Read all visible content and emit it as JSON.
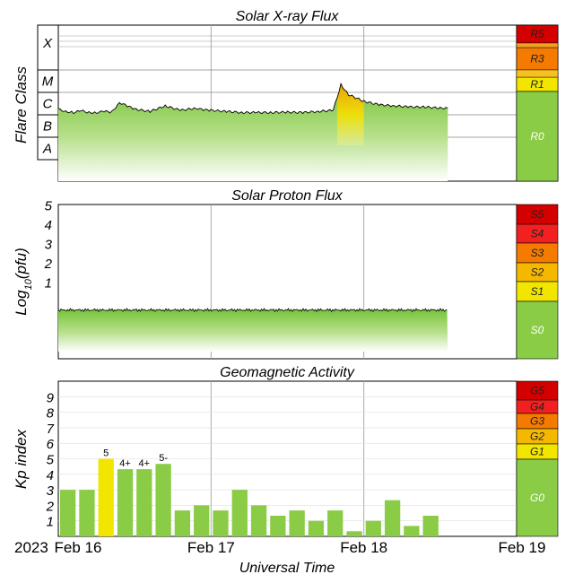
{
  "chart_data": [
    {
      "type": "area",
      "title": "Solar X-ray Flux",
      "ylabel": "Flare Class",
      "classes": [
        "X",
        "M",
        "C",
        "B",
        "A"
      ],
      "scale": [
        {
          "label": "R5",
          "color": "#d40000"
        },
        {
          "label": "R3",
          "color": "#f47a00"
        },
        {
          "label": "R1",
          "color": "#f2e600"
        },
        {
          "label": "R0",
          "color": "#8acc46"
        }
      ],
      "x_days": [
        0,
        0.05,
        0.1,
        0.15,
        0.2,
        0.25,
        0.3,
        0.35,
        0.4,
        0.45,
        0.5,
        0.6,
        0.7,
        0.8,
        0.9,
        0.95,
        1,
        1.1,
        1.2,
        1.3,
        1.4,
        1.5,
        1.6,
        1.7,
        1.8,
        1.85,
        1.9,
        2,
        2.1,
        2.2,
        2.3,
        2.4,
        2.5,
        2.55
      ],
      "class_level": [
        2.25,
        2.15,
        2.1,
        2.18,
        2.1,
        2.1,
        2.15,
        2.12,
        2.55,
        2.4,
        2.25,
        2.15,
        2.4,
        2.2,
        2.3,
        2.22,
        2.2,
        2.15,
        2.1,
        2.1,
        2.1,
        2.12,
        2.1,
        2.15,
        2.2,
        3.35,
        2.9,
        2.6,
        2.45,
        2.4,
        2.35,
        2.35,
        2.3,
        2.3
      ],
      "flare_peak": {
        "start_day": 1.82,
        "end_day": 2.0
      }
    },
    {
      "type": "area",
      "title": "Solar Proton Flux",
      "ylabel": "Log10(pfu)",
      "y_ticks": [
        1,
        2,
        3,
        4,
        5
      ],
      "log10_pfu_level": -0.45,
      "scale": [
        {
          "label": "S5",
          "color": "#d40000"
        },
        {
          "label": "S4",
          "color": "#f22020"
        },
        {
          "label": "S3",
          "color": "#f47a00"
        },
        {
          "label": "S2",
          "color": "#f5b800"
        },
        {
          "label": "S1",
          "color": "#f2e600"
        },
        {
          "label": "S0",
          "color": "#8acc46"
        }
      ]
    },
    {
      "type": "bar",
      "title": "Geomagnetic Activity",
      "ylabel": "Kp index",
      "y_ticks": [
        1,
        2,
        3,
        4,
        5,
        6,
        7,
        8,
        9
      ],
      "ylim": [
        0,
        10
      ],
      "bar_width_hours": 3,
      "kp": [
        3,
        3,
        5,
        4.33,
        4.33,
        4.67,
        1.67,
        2,
        1.67,
        3,
        2,
        1.33,
        1.67,
        1,
        1.67,
        0.33,
        1,
        2.33,
        0.67,
        1.33
      ],
      "kp_labels": [
        "",
        "",
        "5",
        "4+",
        "4+",
        "5-",
        "",
        "",
        "",
        "",
        "",
        "",
        "",
        "",
        "",
        "",
        "",
        "",
        "",
        ""
      ],
      "scale": [
        {
          "label": "G5",
          "color": "#d40000"
        },
        {
          "label": "G4",
          "color": "#f22020"
        },
        {
          "label": "G3",
          "color": "#f47a00"
        },
        {
          "label": "G2",
          "color": "#f5b800"
        },
        {
          "label": "G1",
          "color": "#f2e600"
        },
        {
          "label": "G0",
          "color": "#8acc46"
        }
      ]
    }
  ],
  "xaxis": {
    "label": "Universal Time",
    "year": "2023",
    "ticks": [
      "Feb 16",
      "Feb 17",
      "Feb 18",
      "Feb 19"
    ],
    "range_days": [
      0,
      3
    ]
  }
}
